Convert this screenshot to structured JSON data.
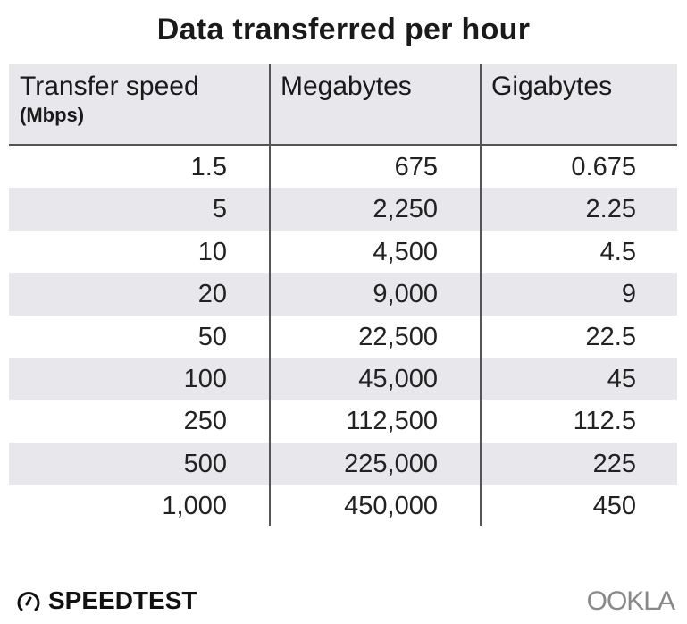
{
  "chart_data": {
    "type": "table",
    "title": "Data transferred per hour",
    "columns": [
      {
        "label": "Transfer speed",
        "sublabel": "(Mbps)"
      },
      {
        "label": "Megabytes"
      },
      {
        "label": "Gigabytes"
      }
    ],
    "rows": [
      [
        "1.5",
        "675",
        "0.675"
      ],
      [
        "5",
        "2,250",
        "2.25"
      ],
      [
        "10",
        "4,500",
        "4.5"
      ],
      [
        "20",
        "9,000",
        "9"
      ],
      [
        "50",
        "22,500",
        "22.5"
      ],
      [
        "100",
        "45,000",
        "45"
      ],
      [
        "250",
        "112,500",
        "112.5"
      ],
      [
        "500",
        "225,000",
        "225"
      ],
      [
        "1,000",
        "450,000",
        "450"
      ]
    ],
    "row_stripe_color": "#e8e8ec"
  },
  "footer": {
    "left_logo": "SPEEDTEST",
    "right_logo": "OOKLA"
  }
}
